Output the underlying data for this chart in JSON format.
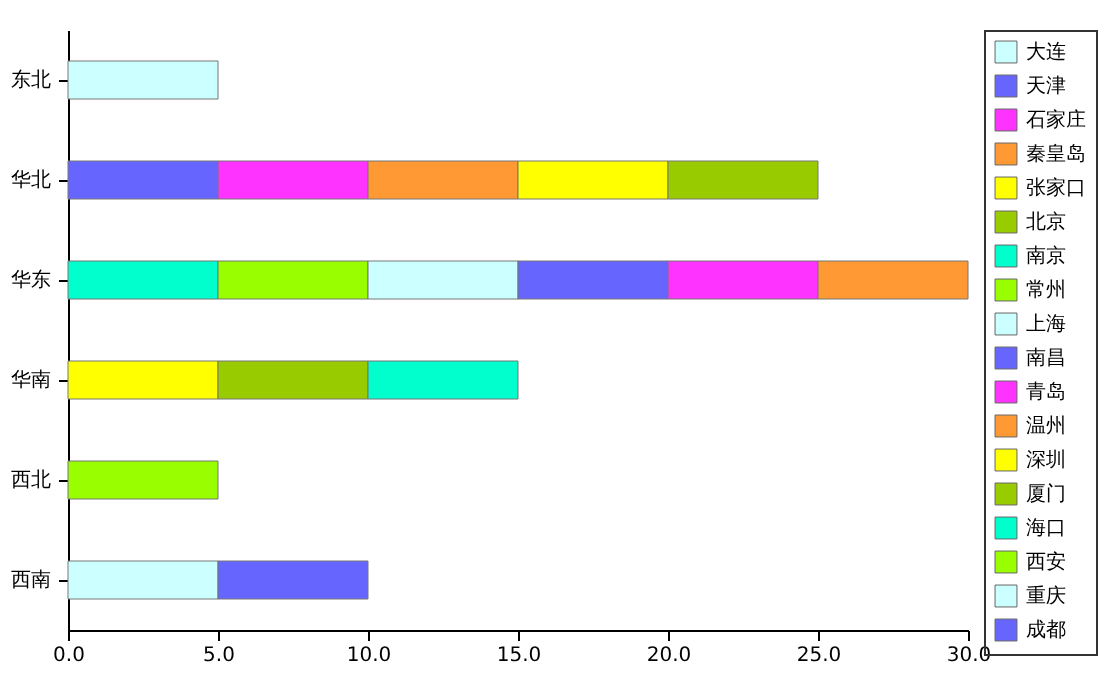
{
  "chart_data": {
    "type": "bar",
    "orientation": "horizontal",
    "stacked": true,
    "categories": [
      "东北",
      "华北",
      "华东",
      "华南",
      "西北",
      "西南"
    ],
    "series": [
      {
        "name": "大连",
        "color": "#ccffff",
        "values": [
          5,
          null,
          null,
          null,
          null,
          null
        ]
      },
      {
        "name": "天津",
        "color": "#6666ff",
        "values": [
          null,
          5,
          null,
          null,
          null,
          null
        ]
      },
      {
        "name": "石家庄",
        "color": "#ff33ff",
        "values": [
          null,
          5,
          null,
          null,
          null,
          null
        ]
      },
      {
        "name": "秦皇岛",
        "color": "#ff9933",
        "values": [
          null,
          5,
          null,
          null,
          null,
          null
        ]
      },
      {
        "name": "张家口",
        "color": "#ffff00",
        "values": [
          null,
          5,
          null,
          null,
          null,
          null
        ]
      },
      {
        "name": "北京",
        "color": "#99cc00",
        "values": [
          null,
          5,
          null,
          null,
          null,
          null
        ]
      },
      {
        "name": "南京",
        "color": "#00ffcc",
        "values": [
          null,
          null,
          5,
          null,
          null,
          null
        ]
      },
      {
        "name": "常州",
        "color": "#99ff00",
        "values": [
          null,
          null,
          5,
          null,
          null,
          null
        ]
      },
      {
        "name": "上海",
        "color": "#ccffff",
        "values": [
          null,
          null,
          5,
          null,
          null,
          null
        ]
      },
      {
        "name": "南昌",
        "color": "#6666ff",
        "values": [
          null,
          null,
          5,
          null,
          null,
          null
        ]
      },
      {
        "name": "青岛",
        "color": "#ff33ff",
        "values": [
          null,
          null,
          5,
          null,
          null,
          null
        ]
      },
      {
        "name": "温州",
        "color": "#ff9933",
        "values": [
          null,
          null,
          5,
          null,
          null,
          null
        ]
      },
      {
        "name": "深圳",
        "color": "#ffff00",
        "values": [
          null,
          null,
          null,
          5,
          null,
          null
        ]
      },
      {
        "name": "厦门",
        "color": "#99cc00",
        "values": [
          null,
          null,
          null,
          5,
          null,
          null
        ]
      },
      {
        "name": "海口",
        "color": "#00ffcc",
        "values": [
          null,
          null,
          null,
          5,
          null,
          null
        ]
      },
      {
        "name": "西安",
        "color": "#99ff00",
        "values": [
          null,
          null,
          null,
          null,
          5,
          null
        ]
      },
      {
        "name": "重庆",
        "color": "#ccffff",
        "values": [
          null,
          null,
          null,
          null,
          null,
          5
        ]
      },
      {
        "name": "成都",
        "color": "#6666ff",
        "values": [
          null,
          null,
          null,
          null,
          null,
          5
        ]
      }
    ],
    "xlim": [
      0,
      30
    ],
    "xticks": [
      {
        "value": 0,
        "label": "0.0"
      },
      {
        "value": 5,
        "label": "5.0"
      },
      {
        "value": 10,
        "label": "10.0"
      },
      {
        "value": 15,
        "label": "15.0"
      },
      {
        "value": 20,
        "label": "20.0"
      },
      {
        "value": 25,
        "label": "25.0"
      },
      {
        "value": 30,
        "label": "30.0"
      }
    ],
    "legend": "right",
    "grid": false
  }
}
